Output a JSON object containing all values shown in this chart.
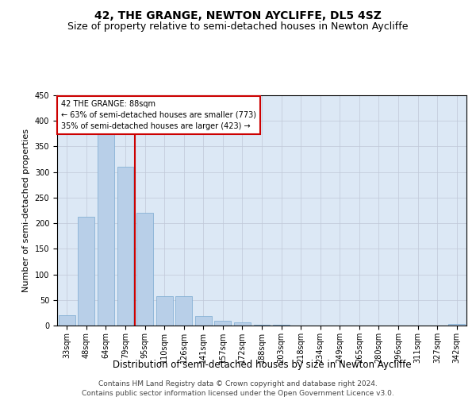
{
  "title": "42, THE GRANGE, NEWTON AYCLIFFE, DL5 4SZ",
  "subtitle": "Size of property relative to semi-detached houses in Newton Aycliffe",
  "xlabel": "Distribution of semi-detached houses by size in Newton Aycliffe",
  "ylabel": "Number of semi-detached properties",
  "categories": [
    "33sqm",
    "48sqm",
    "64sqm",
    "79sqm",
    "95sqm",
    "110sqm",
    "126sqm",
    "141sqm",
    "157sqm",
    "172sqm",
    "188sqm",
    "203sqm",
    "218sqm",
    "234sqm",
    "249sqm",
    "265sqm",
    "280sqm",
    "296sqm",
    "311sqm",
    "327sqm",
    "342sqm"
  ],
  "values": [
    20,
    212,
    375,
    310,
    220,
    57,
    57,
    18,
    10,
    6,
    2,
    1,
    0,
    0,
    0,
    0,
    0,
    0,
    0,
    0,
    3
  ],
  "bar_color": "#b8cfe8",
  "bar_edge_color": "#7aaad0",
  "vline_color": "#cc0000",
  "annotation_text": "42 THE GRANGE: 88sqm\n← 63% of semi-detached houses are smaller (773)\n35% of semi-detached houses are larger (423) →",
  "annotation_box_color": "white",
  "annotation_box_edge": "#cc0000",
  "ylim": [
    0,
    450
  ],
  "yticks": [
    0,
    50,
    100,
    150,
    200,
    250,
    300,
    350,
    400,
    450
  ],
  "footer1": "Contains HM Land Registry data © Crown copyright and database right 2024.",
  "footer2": "Contains public sector information licensed under the Open Government Licence v3.0.",
  "title_fontsize": 10,
  "subtitle_fontsize": 9,
  "ylabel_fontsize": 8,
  "xlabel_fontsize": 8.5,
  "tick_fontsize": 7,
  "footer_fontsize": 6.5,
  "background_color": "#ffffff",
  "plot_bg_color": "#dce8f5",
  "grid_color": "#c0c8d8"
}
